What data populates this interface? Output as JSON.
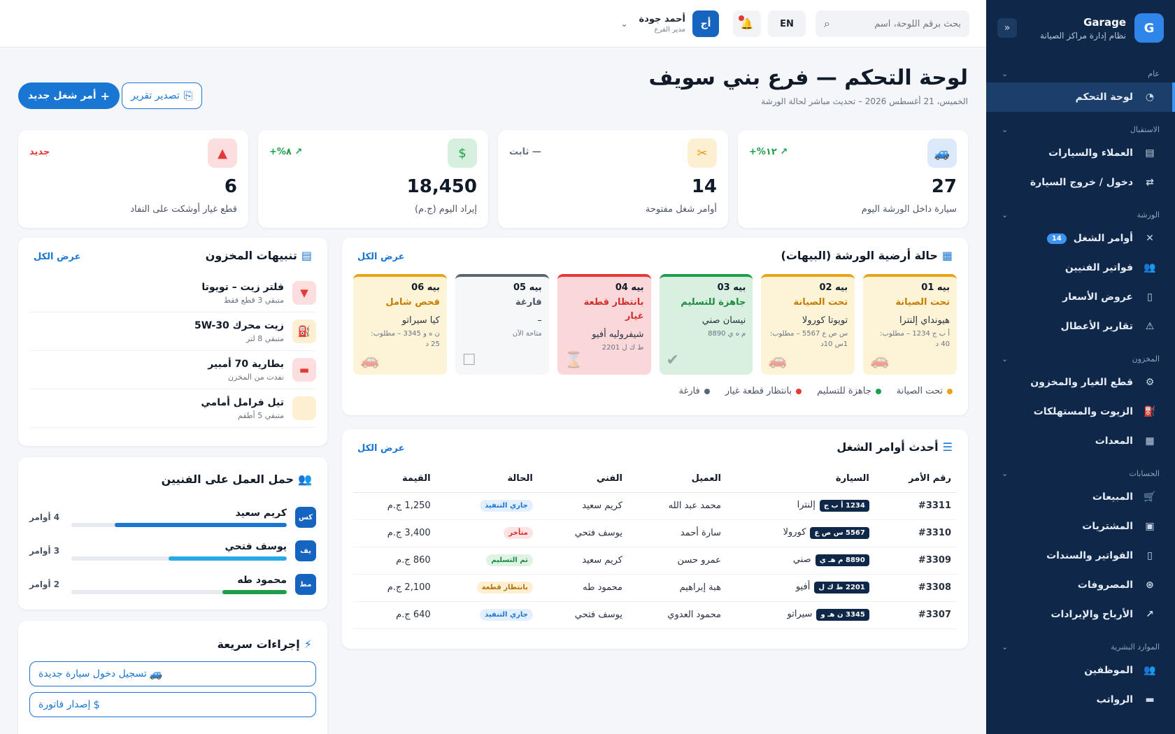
{
  "brand": {
    "name": "Garage",
    "subtitle": "نظام إدارة مراكز الصيانة",
    "logo": "G"
  },
  "sidebar": {
    "sections": [
      {
        "title": "عام",
        "items": [
          {
            "label": "لوحة التحكم",
            "icon": "◔",
            "active": true
          }
        ]
      },
      {
        "title": "الاستقبال",
        "items": [
          {
            "label": "العملاء والسيارات",
            "icon": "▤"
          },
          {
            "label": "دخول / خروج السيارة",
            "icon": "⇄"
          }
        ]
      },
      {
        "title": "الورشة",
        "items": [
          {
            "label": "أوامر الشغل",
            "icon": "✕",
            "badge": "14"
          },
          {
            "label": "فواتير الفنيين",
            "icon": "👥"
          },
          {
            "label": "عروض الأسعار",
            "icon": "▯"
          },
          {
            "label": "تقارير الأعطال",
            "icon": "⚠"
          }
        ]
      },
      {
        "title": "المخزون",
        "items": [
          {
            "label": "قطع الغيار والمخزون",
            "icon": "⚙"
          },
          {
            "label": "الزيوت والمستهلكات",
            "icon": "⛽"
          },
          {
            "label": "المعدات",
            "icon": "▦"
          }
        ]
      },
      {
        "title": "الحسابات",
        "items": [
          {
            "label": "المبيعات",
            "icon": "🛒"
          },
          {
            "label": "المشتريات",
            "icon": "▣"
          },
          {
            "label": "الفواتير والسندات",
            "icon": "▯"
          },
          {
            "label": "المصروفات",
            "icon": "⊛"
          },
          {
            "label": "الأرباح والإيرادات",
            "icon": "↗"
          }
        ]
      },
      {
        "title": "الموارد البشرية",
        "items": [
          {
            "label": "الموظفين",
            "icon": "👥"
          },
          {
            "label": "الرواتب",
            "icon": "▬"
          }
        ]
      }
    ]
  },
  "topbar": {
    "search_placeholder": "بحث برقم اللوحة، اسم",
    "lang": "EN",
    "user": {
      "name": "أحمد جودة",
      "role": "مدير الفرع",
      "initials": "أج"
    }
  },
  "page": {
    "title": "لوحة التحكم — فرع بني سويف",
    "subtitle": "الخميس، 21 أغسطس 2026 – تحديث مباشر لحالة الورشة",
    "btn_new": "أمر شغل جديد",
    "btn_export": "تصدير تقرير"
  },
  "stats": [
    {
      "value": "27",
      "label": "سيارة داخل الورشة اليوم",
      "trend": "↗ ١٢%+",
      "trend_color": "#1e9e4a",
      "icon": "🚙",
      "icon_bg": "#dbe9fb",
      "icon_color": "#1976d2"
    },
    {
      "value": "14",
      "label": "أوامر شغل مفتوحة",
      "trend": "— ثابت",
      "trend_color": "#6b7483",
      "icon": "✂",
      "icon_bg": "#fdf0d2",
      "icon_color": "#e59a0c"
    },
    {
      "value": "18,450",
      "label": "إيراد اليوم (ج.م)",
      "trend": "↗ ٨%+",
      "trend_color": "#1e9e4a",
      "icon": "$",
      "icon_bg": "#d6f0dd",
      "icon_color": "#1e9e4a"
    },
    {
      "value": "6",
      "label": "قطع غيار أوشكت على النفاد",
      "trend": "جديد",
      "trend_color": "#e53935",
      "icon": "▲",
      "icon_bg": "#fcdede",
      "icon_color": "#e53935"
    }
  ],
  "bays_card": {
    "title": "حالة أرضية الورشة (البيهات)",
    "link": "عرض الكل",
    "bays": [
      {
        "name": "بيه 01",
        "status": "تحت الصيانة",
        "car": "هيونداي إلنترا",
        "info": "أ ب ج 1234 – مطلوب: 40 د",
        "color": "#e8a317",
        "bg": "#fdf3d6",
        "status_color": "#c67c00",
        "icon": "🚗"
      },
      {
        "name": "بيه 02",
        "status": "تحت الصيانة",
        "car": "تويوتا كورولا",
        "info": "س ص ع 5567 – مطلوب: 1س 10د",
        "color": "#e8a317",
        "bg": "#fdf3d6",
        "status_color": "#c67c00",
        "icon": "🚗"
      },
      {
        "name": "بيه 03",
        "status": "جاهزة للتسليم",
        "car": "نيسان صني",
        "info": "م ه ي 8890",
        "color": "#1e9e4a",
        "bg": "#d9efe0",
        "status_color": "#1e8a42",
        "icon": "✔"
      },
      {
        "name": "بيه 04",
        "status": "بانتظار قطعة غيار",
        "car": "شيفروليه أفيو",
        "info": "ط ك ل 2201",
        "color": "#e53935",
        "bg": "#fad7d9",
        "status_color": "#d32f2f",
        "icon": "⌛"
      },
      {
        "name": "بيه 05",
        "status": "فارغة",
        "car": "–",
        "info": "متاحة الآن",
        "color": "#5b6675",
        "bg": "#f6f7f9",
        "status_color": "#4a5463",
        "icon": "☐"
      },
      {
        "name": "بيه 06",
        "status": "فحص شامل",
        "car": "كيا سيراتو",
        "info": "ن ه و 3345 – مطلوب: 25 د",
        "color": "#e8a317",
        "bg": "#fdf3d6",
        "status_color": "#c67c00",
        "icon": "🚗"
      }
    ],
    "legend": [
      {
        "label": "تحت الصيانة",
        "color": "#e8a317"
      },
      {
        "label": "جاهزة للتسليم",
        "color": "#1e9e4a"
      },
      {
        "label": "بانتظار قطعة غيار",
        "color": "#e53935"
      },
      {
        "label": "فارغة",
        "color": "#5b6675"
      }
    ]
  },
  "orders_card": {
    "title": "أحدث أوامر الشغل",
    "link": "عرض الكل",
    "columns": [
      "رقم الأمر",
      "السيارة",
      "العميل",
      "الفني",
      "الحالة",
      "القيمة"
    ],
    "rows": [
      {
        "id": "#3311",
        "plate": "1234 أ ب ج",
        "car": "إلنترا",
        "client": "محمد عبد الله",
        "tech": "كريم سعيد",
        "status": "جاري التنفيذ",
        "status_bg": "#e3effc",
        "status_color": "#1976d2",
        "value": "1,250 ج.م"
      },
      {
        "id": "#3310",
        "plate": "5567 س ص ع",
        "car": "كورولا",
        "client": "سارة أحمد",
        "tech": "يوسف فتحي",
        "status": "متأخر",
        "status_bg": "#fde3e3",
        "status_color": "#d32f2f",
        "value": "3,400 ج.م"
      },
      {
        "id": "#3309",
        "plate": "8890 م هـ ي",
        "car": "صني",
        "client": "عمرو حسن",
        "tech": "كريم سعيد",
        "status": "تم التسليم",
        "status_bg": "#dff3e5",
        "status_color": "#1e8a42",
        "value": "860 ج.م"
      },
      {
        "id": "#3308",
        "plate": "2201 ط ك ل",
        "car": "أفيو",
        "client": "هبة إبراهيم",
        "tech": "محمود طه",
        "status": "بانتظار قطعة",
        "status_bg": "#fdf0d2",
        "status_color": "#b7700a",
        "value": "2,100 ج.م"
      },
      {
        "id": "#3307",
        "plate": "3345 ن هـ و",
        "car": "سيراتو",
        "client": "محمود العدوي",
        "tech": "يوسف فتحي",
        "status": "جاري التنفيذ",
        "status_bg": "#e3effc",
        "status_color": "#1976d2",
        "value": "640 ج.م"
      }
    ]
  },
  "inventory_card": {
    "title": "تنبيهات المخزون",
    "link": "عرض الكل",
    "items": [
      {
        "name": "فلتر زيت – تويوتا",
        "note": "متبقي 3 قطع فقط",
        "icon": "▼",
        "bg": "#fcdede",
        "color": "#e53935"
      },
      {
        "name": "زيت محرك 5W-30",
        "note": "متبقي 8 لتر",
        "icon": "⛽",
        "bg": "#fdf0d2",
        "color": "#e59a0c"
      },
      {
        "name": "بطارية 70 أمبير",
        "note": "نفدت من المخزن",
        "icon": "▬",
        "bg": "#fcdede",
        "color": "#e53935"
      },
      {
        "name": "تيل فرامل أمامي",
        "note": "متبقي 5 أطقم",
        "icon": "",
        "bg": "#fdf0d2",
        "color": "#e59a0c"
      }
    ]
  },
  "workload_card": {
    "title": "حمل العمل على الفنيين",
    "techs": [
      {
        "initials": "كس",
        "name": "كريم سعيد",
        "count": "4 أوامر",
        "load": 0.8,
        "color": "#1976d2"
      },
      {
        "initials": "يف",
        "name": "يوسف فتحي",
        "count": "3 أوامر",
        "load": 0.55,
        "color": "#29a8e8"
      },
      {
        "initials": "مط",
        "name": "محمود طه",
        "count": "2 أوامر",
        "load": 0.3,
        "color": "#1e9e4a"
      }
    ]
  },
  "quick_card": {
    "title": "إجراءات سريعة",
    "actions": [
      {
        "label": "تسجيل دخول سيارة جديدة",
        "icon": "🚙"
      },
      {
        "label": "إصدار فاتورة",
        "icon": "$"
      }
    ]
  }
}
